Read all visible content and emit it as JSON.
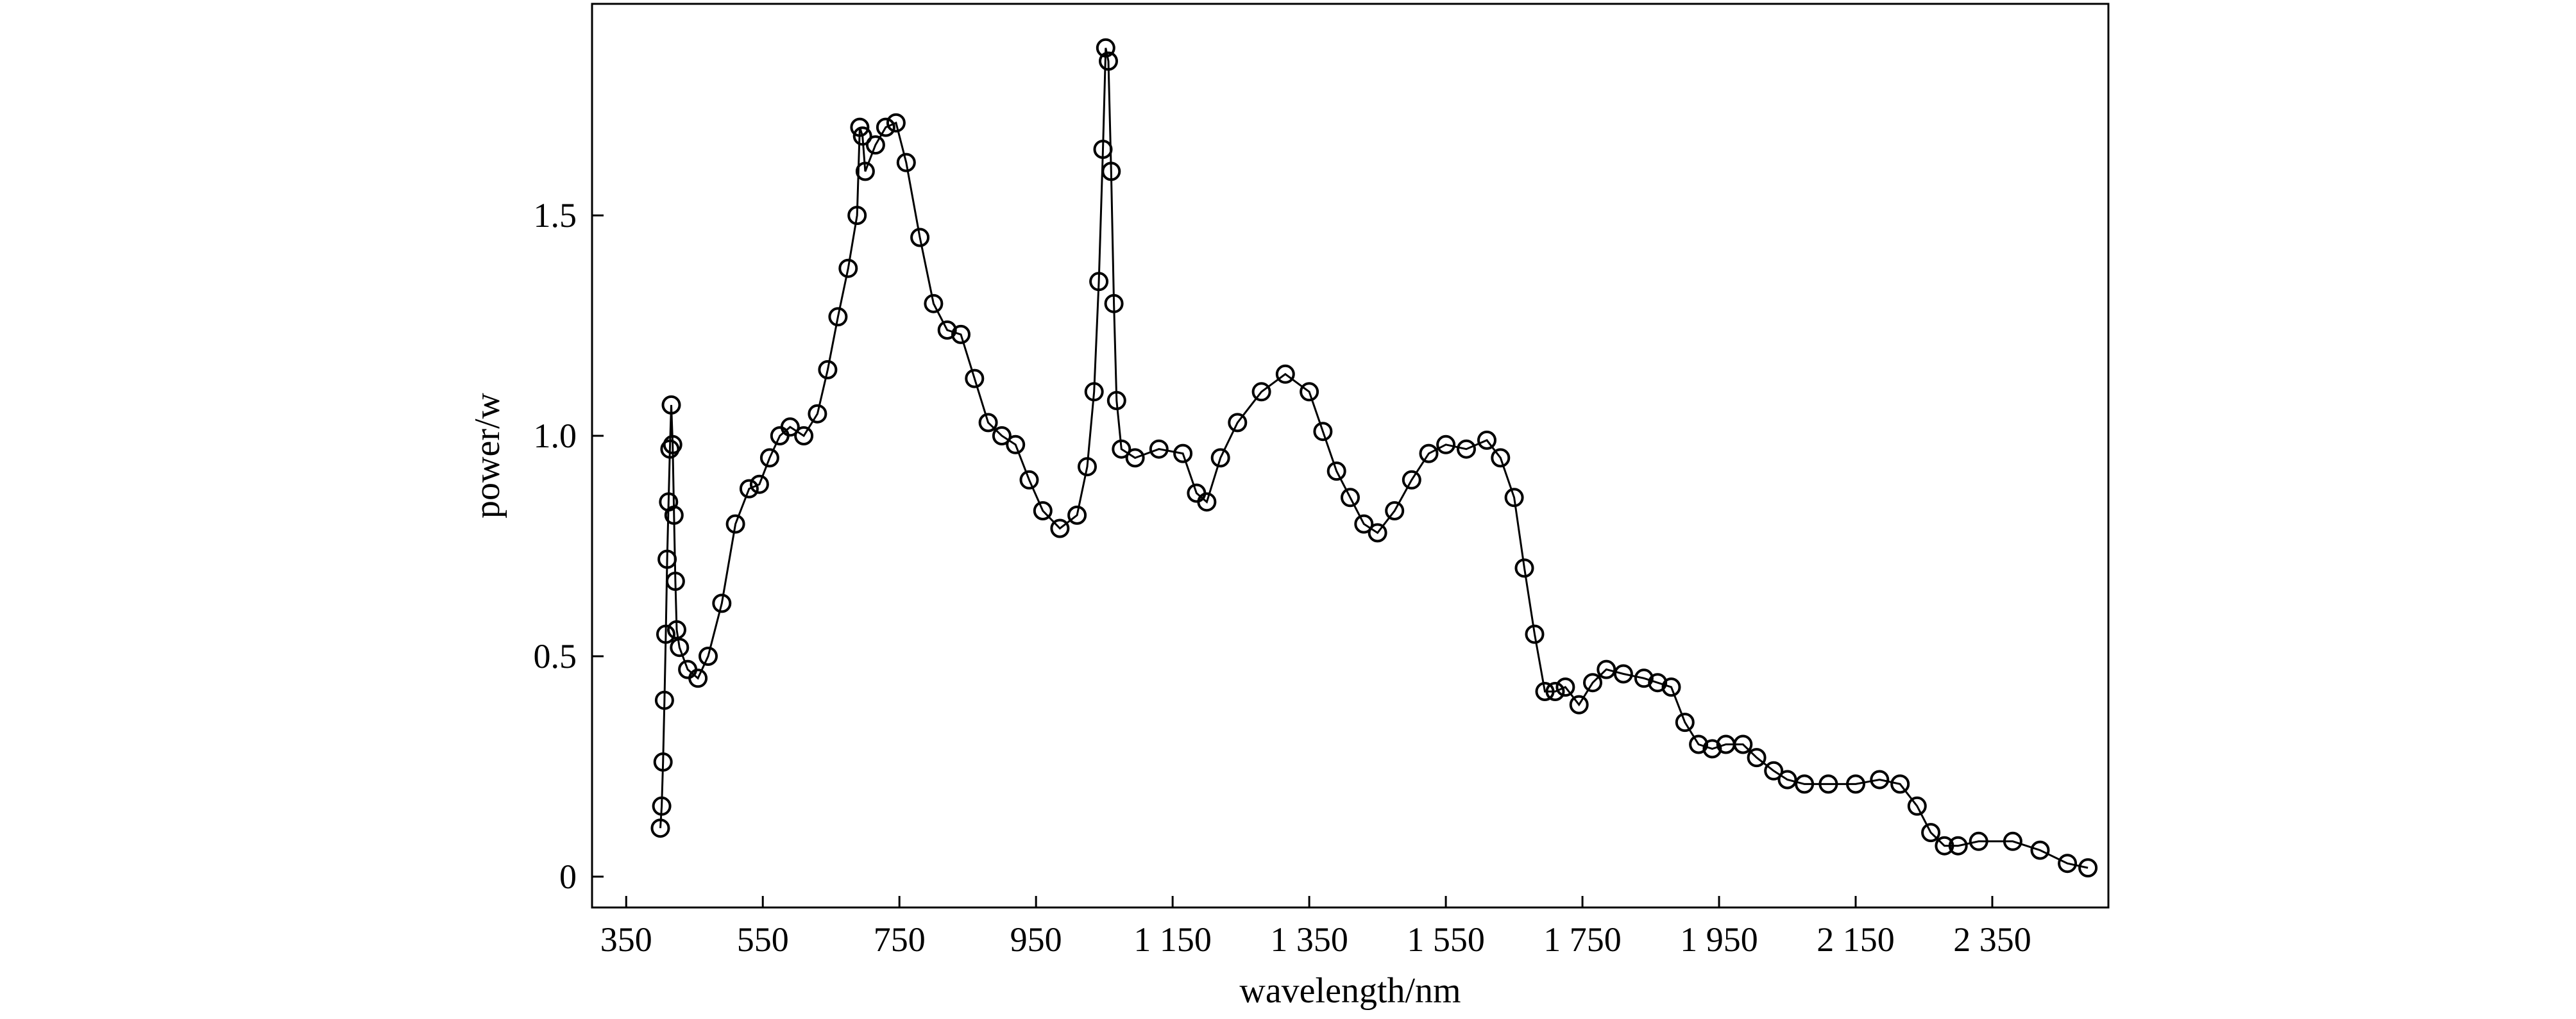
{
  "chart_data": {
    "type": "scatter",
    "title": "",
    "xlabel": "wavelength/nm",
    "ylabel": "power/w",
    "xlim": [
      300,
      2520
    ],
    "ylim": [
      -0.07,
      1.98
    ],
    "x_ticks": [
      350,
      550,
      750,
      950,
      1150,
      1350,
      1550,
      1750,
      1950,
      2150,
      2350
    ],
    "x_tick_labels": [
      "350",
      "550",
      "750",
      "950",
      "1 150",
      "1 350",
      "1 550",
      "1 750",
      "1 950",
      "2 150",
      "2 350"
    ],
    "y_ticks": [
      0,
      0.5,
      1.0,
      1.5
    ],
    "y_tick_labels": [
      "0",
      "0.5",
      "1.0",
      "1.5"
    ],
    "grid": false,
    "legend": "none",
    "marker": "open-circle",
    "line_color": "#000000",
    "series": [
      {
        "name": "",
        "points": [
          [
            400,
            0.11
          ],
          [
            402,
            0.16
          ],
          [
            404,
            0.26
          ],
          [
            406,
            0.4
          ],
          [
            408,
            0.55
          ],
          [
            410,
            0.72
          ],
          [
            412,
            0.85
          ],
          [
            414,
            0.97
          ],
          [
            416,
            1.07
          ],
          [
            418,
            0.98
          ],
          [
            420,
            0.82
          ],
          [
            422,
            0.67
          ],
          [
            424,
            0.56
          ],
          [
            428,
            0.52
          ],
          [
            440,
            0.47
          ],
          [
            455,
            0.45
          ],
          [
            470,
            0.5
          ],
          [
            490,
            0.62
          ],
          [
            510,
            0.8
          ],
          [
            530,
            0.88
          ],
          [
            545,
            0.89
          ],
          [
            560,
            0.95
          ],
          [
            575,
            1.0
          ],
          [
            590,
            1.02
          ],
          [
            610,
            1.0
          ],
          [
            630,
            1.05
          ],
          [
            645,
            1.15
          ],
          [
            660,
            1.27
          ],
          [
            675,
            1.38
          ],
          [
            688,
            1.5
          ],
          [
            692,
            1.7
          ],
          [
            696,
            1.68
          ],
          [
            700,
            1.6
          ],
          [
            715,
            1.66
          ],
          [
            730,
            1.7
          ],
          [
            745,
            1.71
          ],
          [
            760,
            1.62
          ],
          [
            780,
            1.45
          ],
          [
            800,
            1.3
          ],
          [
            820,
            1.24
          ],
          [
            840,
            1.23
          ],
          [
            860,
            1.13
          ],
          [
            880,
            1.03
          ],
          [
            900,
            1.0
          ],
          [
            920,
            0.98
          ],
          [
            940,
            0.9
          ],
          [
            960,
            0.83
          ],
          [
            985,
            0.79
          ],
          [
            1010,
            0.82
          ],
          [
            1025,
            0.93
          ],
          [
            1035,
            1.1
          ],
          [
            1042,
            1.35
          ],
          [
            1048,
            1.65
          ],
          [
            1052,
            1.88
          ],
          [
            1056,
            1.85
          ],
          [
            1060,
            1.6
          ],
          [
            1064,
            1.3
          ],
          [
            1068,
            1.08
          ],
          [
            1075,
            0.97
          ],
          [
            1095,
            0.95
          ],
          [
            1130,
            0.97
          ],
          [
            1165,
            0.96
          ],
          [
            1185,
            0.87
          ],
          [
            1200,
            0.85
          ],
          [
            1220,
            0.95
          ],
          [
            1245,
            1.03
          ],
          [
            1280,
            1.1
          ],
          [
            1315,
            1.14
          ],
          [
            1350,
            1.1
          ],
          [
            1370,
            1.01
          ],
          [
            1390,
            0.92
          ],
          [
            1410,
            0.86
          ],
          [
            1430,
            0.8
          ],
          [
            1450,
            0.78
          ],
          [
            1475,
            0.83
          ],
          [
            1500,
            0.9
          ],
          [
            1525,
            0.96
          ],
          [
            1550,
            0.98
          ],
          [
            1580,
            0.97
          ],
          [
            1610,
            0.99
          ],
          [
            1630,
            0.95
          ],
          [
            1650,
            0.86
          ],
          [
            1665,
            0.7
          ],
          [
            1680,
            0.55
          ],
          [
            1695,
            0.42
          ],
          [
            1710,
            0.42
          ],
          [
            1725,
            0.43
          ],
          [
            1745,
            0.39
          ],
          [
            1765,
            0.44
          ],
          [
            1785,
            0.47
          ],
          [
            1810,
            0.46
          ],
          [
            1840,
            0.45
          ],
          [
            1860,
            0.44
          ],
          [
            1880,
            0.43
          ],
          [
            1900,
            0.35
          ],
          [
            1920,
            0.3
          ],
          [
            1940,
            0.29
          ],
          [
            1960,
            0.3
          ],
          [
            1985,
            0.3
          ],
          [
            2005,
            0.27
          ],
          [
            2030,
            0.24
          ],
          [
            2050,
            0.22
          ],
          [
            2075,
            0.21
          ],
          [
            2110,
            0.21
          ],
          [
            2150,
            0.21
          ],
          [
            2185,
            0.22
          ],
          [
            2215,
            0.21
          ],
          [
            2240,
            0.16
          ],
          [
            2260,
            0.1
          ],
          [
            2280,
            0.07
          ],
          [
            2300,
            0.07
          ],
          [
            2330,
            0.08
          ],
          [
            2380,
            0.08
          ],
          [
            2420,
            0.06
          ],
          [
            2460,
            0.03
          ],
          [
            2490,
            0.02
          ]
        ]
      }
    ]
  }
}
